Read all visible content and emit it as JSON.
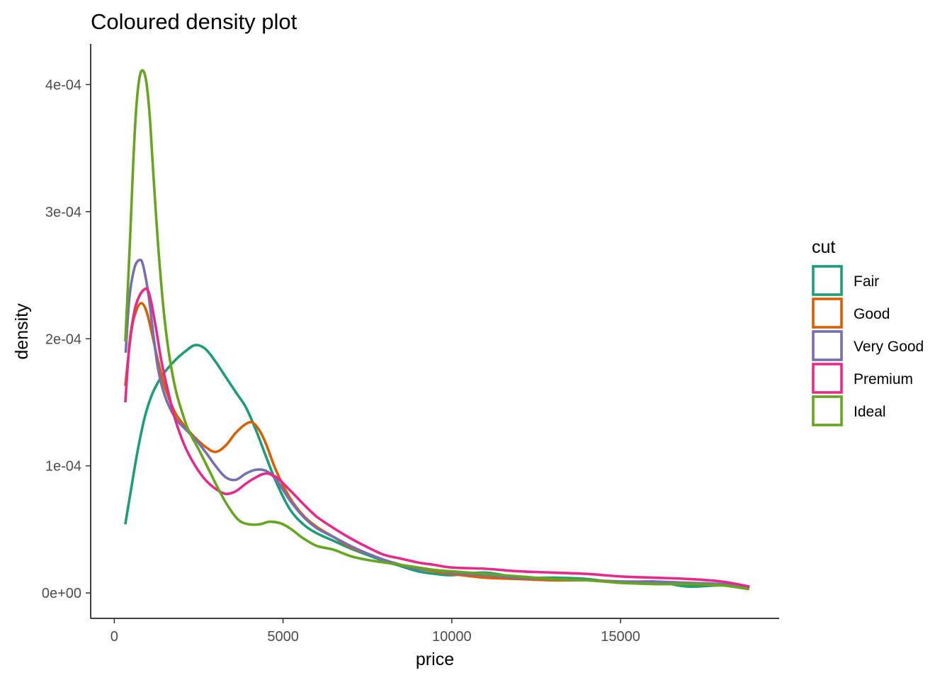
{
  "chart_data": {
    "type": "line",
    "title": "Coloured density plot",
    "xlabel": "price",
    "ylabel": "density",
    "xlim": [
      -700,
      19700
    ],
    "ylim": [
      -2e-05,
      0.000432
    ],
    "x_ticks": [
      0,
      5000,
      10000,
      15000
    ],
    "x_tick_labels": [
      "0",
      "5000",
      "10000",
      "15000"
    ],
    "y_ticks": [
      0,
      0.0001,
      0.0002,
      0.0003,
      0.0004
    ],
    "y_tick_labels": [
      "0e+00",
      "1e-04",
      "2e-04",
      "3e-04",
      "4e-04"
    ],
    "grid": false,
    "legend": {
      "title": "cut",
      "position": "right"
    },
    "series": [
      {
        "name": "Fair",
        "color": "#1b9e77",
        "x": [
          326,
          500,
          700,
          900,
          1100,
          1300,
          1500,
          1800,
          2100,
          2400,
          2700,
          3000,
          3300,
          3600,
          3900,
          4200,
          4500,
          4800,
          5200,
          5600,
          6000,
          6500,
          7000,
          7500,
          8000,
          8500,
          9000,
          9500,
          10000,
          11000,
          12000,
          13000,
          14000,
          15000,
          16000,
          17000,
          18000,
          18823
        ],
        "y": [
          5.4e-05,
          8.2e-05,
          0.000113,
          0.000138,
          0.000155,
          0.000166,
          0.000174,
          0.000183,
          0.00019,
          0.000195,
          0.000192,
          0.000182,
          0.00017,
          0.000158,
          0.000146,
          0.000128,
          0.000107,
          8.7e-05,
          6.6e-05,
          5.4e-05,
          4.7e-05,
          4.1e-05,
          3.5e-05,
          3e-05,
          2.5e-05,
          2.1e-05,
          1.7e-05,
          1.5e-05,
          1.4e-05,
          1.6e-05,
          1.2e-05,
          1.2e-05,
          1.1e-05,
          8e-06,
          9e-06,
          5e-06,
          6e-06,
          4e-06
        ]
      },
      {
        "name": "Good",
        "color": "#d95f02",
        "x": [
          326,
          500,
          650,
          800,
          950,
          1100,
          1300,
          1500,
          1800,
          2100,
          2400,
          2700,
          3000,
          3300,
          3600,
          3900,
          4100,
          4300,
          4500,
          4800,
          5200,
          5600,
          6000,
          6500,
          7000,
          7500,
          8000,
          8500,
          9000,
          9500,
          10000,
          11000,
          12000,
          13000,
          14000,
          15000,
          16000,
          17000,
          18000,
          18788
        ],
        "y": [
          0.000163,
          0.000205,
          0.000222,
          0.000228,
          0.000222,
          0.000206,
          0.000182,
          0.000162,
          0.000142,
          0.000131,
          0.000122,
          0.000115,
          0.000111,
          0.000116,
          0.000126,
          0.000133,
          0.000134,
          0.000128,
          0.000117,
          9.6e-05,
          7.5e-05,
          6.1e-05,
          5.2e-05,
          4.4e-05,
          3.6e-05,
          3.1e-05,
          2.6e-05,
          2.2e-05,
          1.9e-05,
          1.7e-05,
          1.5e-05,
          1.2e-05,
          1.1e-05,
          1e-05,
          1e-05,
          9e-06,
          8e-06,
          7e-06,
          6e-06,
          4e-06
        ]
      },
      {
        "name": "Very Good",
        "color": "#7570b3",
        "x": [
          336,
          450,
          600,
          750,
          850,
          1000,
          1150,
          1300,
          1500,
          1800,
          2100,
          2400,
          2700,
          3000,
          3300,
          3600,
          3900,
          4200,
          4500,
          4800,
          5200,
          5600,
          6000,
          6500,
          7000,
          7500,
          8000,
          8500,
          9000,
          9500,
          10000,
          11000,
          12000,
          13000,
          14000,
          15000,
          16000,
          17000,
          18000,
          18818
        ],
        "y": [
          0.000189,
          0.000233,
          0.000256,
          0.000262,
          0.000258,
          0.000237,
          0.000205,
          0.000176,
          0.000155,
          0.000138,
          0.000129,
          0.000121,
          0.000111,
          0.0001,
          9.1e-05,
          8.9e-05,
          9.4e-05,
          9.7e-05,
          9.6e-05,
          8.9e-05,
          7.3e-05,
          6e-05,
          5.1e-05,
          4.4e-05,
          3.7e-05,
          3.1e-05,
          2.6e-05,
          2.2e-05,
          1.9e-05,
          1.8e-05,
          1.6e-05,
          1.4e-05,
          1.2e-05,
          1.1e-05,
          1e-05,
          9e-06,
          9e-06,
          8e-06,
          7e-06,
          5e-06
        ]
      },
      {
        "name": "Premium",
        "color": "#e7298a",
        "x": [
          326,
          450,
          600,
          750,
          900,
          1000,
          1100,
          1250,
          1400,
          1600,
          1800,
          2100,
          2400,
          2700,
          3000,
          3300,
          3600,
          3900,
          4200,
          4500,
          4800,
          5200,
          5600,
          6000,
          6500,
          7000,
          7500,
          8000,
          8500,
          9000,
          9500,
          10000,
          11000,
          12000,
          13000,
          14000,
          15000,
          16000,
          17000,
          18000,
          18823
        ],
        "y": [
          0.00015,
          0.000196,
          0.000222,
          0.000234,
          0.000239,
          0.000238,
          0.000228,
          0.000206,
          0.000182,
          0.000158,
          0.000137,
          0.000115,
          0.0001,
          8.9e-05,
          8.2e-05,
          7.8e-05,
          8e-05,
          8.6e-05,
          9.1e-05,
          9.4e-05,
          9.1e-05,
          8.1e-05,
          7e-05,
          6e-05,
          5.1e-05,
          4.3e-05,
          3.6e-05,
          3e-05,
          2.7e-05,
          2.4e-05,
          2.2e-05,
          2e-05,
          1.9e-05,
          1.7e-05,
          1.6e-05,
          1.5e-05,
          1.3e-05,
          1.2e-05,
          1.1e-05,
          9e-06,
          5e-06
        ]
      },
      {
        "name": "Ideal",
        "color": "#66a61e",
        "x": [
          326,
          450,
          550,
          650,
          750,
          850,
          950,
          1050,
          1150,
          1300,
          1450,
          1600,
          1800,
          2000,
          2200,
          2500,
          2800,
          3100,
          3400,
          3700,
          4000,
          4300,
          4600,
          4900,
          5200,
          5600,
          6000,
          6500,
          7000,
          7500,
          8000,
          8500,
          9000,
          9500,
          10000,
          11000,
          12000,
          13000,
          14000,
          15000,
          16000,
          17000,
          18000,
          18806
        ],
        "y": [
          0.000198,
          0.000268,
          0.000332,
          0.000381,
          0.000406,
          0.000411,
          0.000402,
          0.000375,
          0.000333,
          0.000273,
          0.000226,
          0.000192,
          0.000162,
          0.000143,
          0.000128,
          0.000113,
          9.7e-05,
          8.1e-05,
          6.7e-05,
          5.7e-05,
          5.4e-05,
          5.4e-05,
          5.6e-05,
          5.5e-05,
          5.1e-05,
          4.3e-05,
          3.7e-05,
          3.4e-05,
          2.9e-05,
          2.6e-05,
          2.4e-05,
          2.2e-05,
          2e-05,
          1.8e-05,
          1.7e-05,
          1.5e-05,
          1.3e-05,
          1.1e-05,
          1e-05,
          8e-06,
          7e-06,
          7e-06,
          6e-06,
          3e-06
        ]
      }
    ]
  }
}
